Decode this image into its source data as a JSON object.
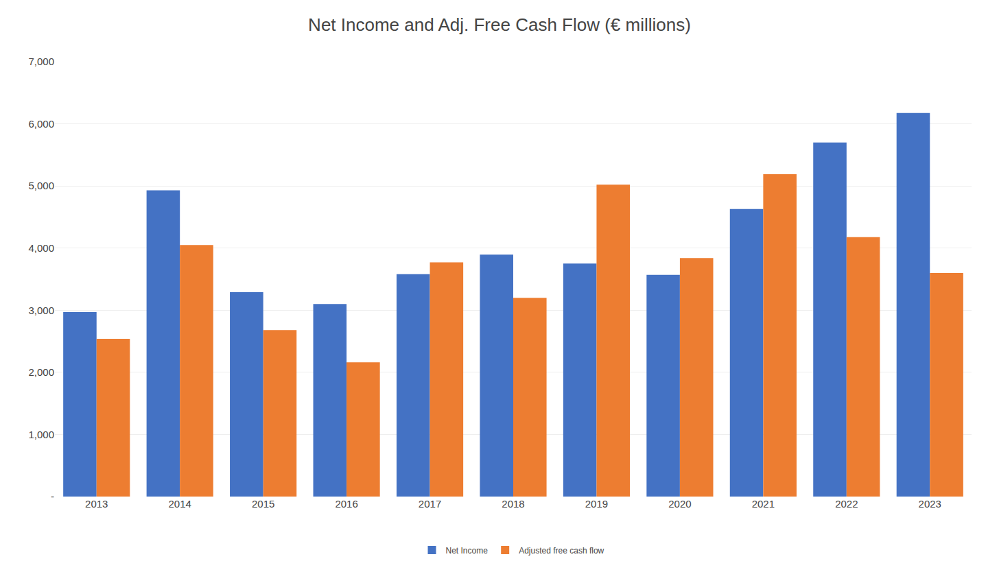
{
  "chart_data": {
    "type": "bar",
    "title": "Net Income and Adj. Free Cash Flow (€ millions)",
    "categories": [
      "2013",
      "2014",
      "2015",
      "2016",
      "2017",
      "2018",
      "2019",
      "2020",
      "2021",
      "2022",
      "2023"
    ],
    "series": [
      {
        "name": "Net Income",
        "color": "#4472c4",
        "values": [
          2970,
          4930,
          3290,
          3100,
          3580,
          3895,
          3750,
          3570,
          4630,
          5700,
          6175
        ]
      },
      {
        "name": "Adjusted free cash flow",
        "color": "#ed7d31",
        "values": [
          2540,
          4050,
          2680,
          2160,
          3770,
          3200,
          5020,
          3840,
          5190,
          4175,
          3600
        ]
      }
    ],
    "ylim": [
      0,
      7000
    ],
    "yticks": [
      {
        "value": 0,
        "label": "-"
      },
      {
        "value": 1000,
        "label": "1,000"
      },
      {
        "value": 2000,
        "label": "2,000"
      },
      {
        "value": 3000,
        "label": "3,000"
      },
      {
        "value": 4000,
        "label": "4,000"
      },
      {
        "value": 5000,
        "label": "5,000"
      },
      {
        "value": 6000,
        "label": "6,000"
      },
      {
        "value": 7000,
        "label": "7,000"
      }
    ],
    "grid": true,
    "legend": "bottom"
  }
}
